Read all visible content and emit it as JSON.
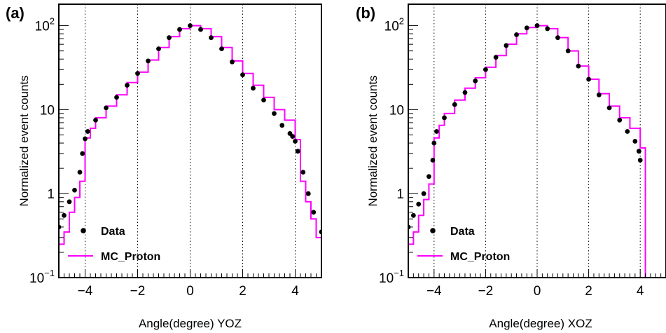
{
  "colors": {
    "data": "#000000",
    "mc": "#ff00ff",
    "grid": "#000000",
    "frame": "#000000"
  },
  "chart_data": [
    {
      "type": "scatter",
      "panel_label": "(a)",
      "xlabel": "Angle(degree) YOZ",
      "ylabel": "Normalized event counts",
      "xlim": [
        -5,
        5
      ],
      "ylim": [
        0.1,
        180
      ],
      "yscale": "log",
      "grid": "vertical dotted at x = -4, -2, 0, 2, 4",
      "legend_position": "lower-left",
      "xticks": [
        -4,
        -2,
        0,
        2,
        4
      ],
      "xtick_labels": [
        "−4",
        "−2",
        "0",
        "2",
        "4"
      ],
      "yticks": [
        0.1,
        1,
        10,
        100
      ],
      "ytick_labels": [
        {
          "base": "10",
          "exp": "−1"
        },
        {
          "base": "1",
          "exp": ""
        },
        {
          "base": "10",
          "exp": ""
        },
        {
          "base": "10",
          "exp": "2"
        }
      ],
      "series": [
        {
          "name": "Data",
          "kind": "points",
          "x": [
            -5.0,
            -4.8,
            -4.6,
            -4.4,
            -4.2,
            -4.1,
            -4.0,
            -3.9,
            -3.6,
            -3.2,
            -2.8,
            -2.4,
            -2.0,
            -1.6,
            -1.2,
            -0.8,
            -0.4,
            0.0,
            0.4,
            0.8,
            1.2,
            1.6,
            2.0,
            2.4,
            2.8,
            3.2,
            3.5,
            3.8,
            3.9,
            4.0,
            4.1,
            4.3,
            4.5,
            4.7,
            5.0
          ],
          "y": [
            0.4,
            0.55,
            0.8,
            1.1,
            1.8,
            3.0,
            4.5,
            5.5,
            7.5,
            10.5,
            14.0,
            19.5,
            27.0,
            38.0,
            53.0,
            72.0,
            90.0,
            100.0,
            90.0,
            72.0,
            53.0,
            37.0,
            26.0,
            18.0,
            13.0,
            9.0,
            6.5,
            5.2,
            4.8,
            4.2,
            3.2,
            1.8,
            1.0,
            0.6,
            0.35
          ]
        },
        {
          "name": "MC_Proton",
          "kind": "step",
          "x": [
            -5.0,
            -4.8,
            -4.6,
            -4.4,
            -4.2,
            -4.0,
            -3.8,
            -3.6,
            -3.2,
            -2.8,
            -2.4,
            -2.0,
            -1.6,
            -1.2,
            -0.8,
            -0.4,
            0.0,
            0.4,
            0.8,
            1.2,
            1.6,
            2.0,
            2.4,
            2.8,
            3.2,
            3.6,
            4.0,
            4.2,
            4.4,
            4.6,
            4.8,
            5.0
          ],
          "y": [
            0.25,
            0.35,
            0.6,
            0.9,
            1.4,
            4.6,
            6.0,
            8.0,
            11.0,
            15.0,
            21.0,
            28.0,
            39.0,
            55.0,
            74.0,
            92.0,
            100.0,
            92.0,
            74.0,
            55.0,
            38.0,
            27.0,
            19.5,
            14.0,
            10.0,
            7.5,
            4.4,
            1.4,
            0.8,
            0.5,
            0.3,
            0.2
          ]
        }
      ]
    },
    {
      "type": "scatter",
      "panel_label": "(b)",
      "xlabel": "Angle(degree) XOZ",
      "ylabel": "Normalized event counts",
      "xlim": [
        -5,
        5
      ],
      "ylim": [
        0.1,
        180
      ],
      "yscale": "log",
      "grid": "vertical dotted at x = -4, -2, 0, 2, 4",
      "legend_position": "lower-left",
      "xticks": [
        -4,
        -2,
        0,
        2,
        4
      ],
      "xtick_labels": [
        "−4",
        "−2",
        "0",
        "2",
        "4"
      ],
      "yticks": [
        0.1,
        1,
        10,
        100
      ],
      "ytick_labels": [
        {
          "base": "10",
          "exp": "−1"
        },
        {
          "base": "1",
          "exp": ""
        },
        {
          "base": "10",
          "exp": ""
        },
        {
          "base": "10",
          "exp": "2"
        }
      ],
      "series": [
        {
          "name": "Data",
          "kind": "points",
          "x": [
            -5.0,
            -4.8,
            -4.6,
            -4.4,
            -4.2,
            -4.05,
            -4.0,
            -3.9,
            -3.6,
            -3.2,
            -2.8,
            -2.4,
            -2.0,
            -1.6,
            -1.2,
            -0.8,
            -0.4,
            0.0,
            0.4,
            0.8,
            1.2,
            1.6,
            2.0,
            2.4,
            2.8,
            3.2,
            3.5,
            3.8,
            3.95,
            4.0
          ],
          "y": [
            0.4,
            0.55,
            0.75,
            1.0,
            1.6,
            2.5,
            4.0,
            5.5,
            8.0,
            11.5,
            16.0,
            22.0,
            30.0,
            42.0,
            58.0,
            78.0,
            94.0,
            100.0,
            92.0,
            72.0,
            50.0,
            33.0,
            23.0,
            15.0,
            10.5,
            7.5,
            5.5,
            4.2,
            3.2,
            2.5
          ]
        },
        {
          "name": "MC_Proton",
          "kind": "step",
          "x": [
            -5.0,
            -4.8,
            -4.6,
            -4.4,
            -4.2,
            -4.0,
            -3.8,
            -3.6,
            -3.2,
            -2.8,
            -2.4,
            -2.0,
            -1.6,
            -1.2,
            -0.8,
            -0.4,
            0.0,
            0.4,
            0.8,
            1.2,
            1.6,
            2.0,
            2.4,
            2.8,
            3.2,
            3.6,
            4.0,
            4.2
          ],
          "y": [
            0.25,
            0.35,
            0.55,
            0.85,
            1.3,
            4.6,
            6.5,
            9.0,
            13.0,
            18.0,
            24.0,
            32.0,
            44.0,
            60.0,
            80.0,
            95.0,
            100.0,
            92.0,
            72.0,
            50.0,
            33.0,
            23.0,
            15.5,
            11.0,
            8.0,
            6.0,
            3.5,
            0.3
          ]
        }
      ]
    }
  ]
}
